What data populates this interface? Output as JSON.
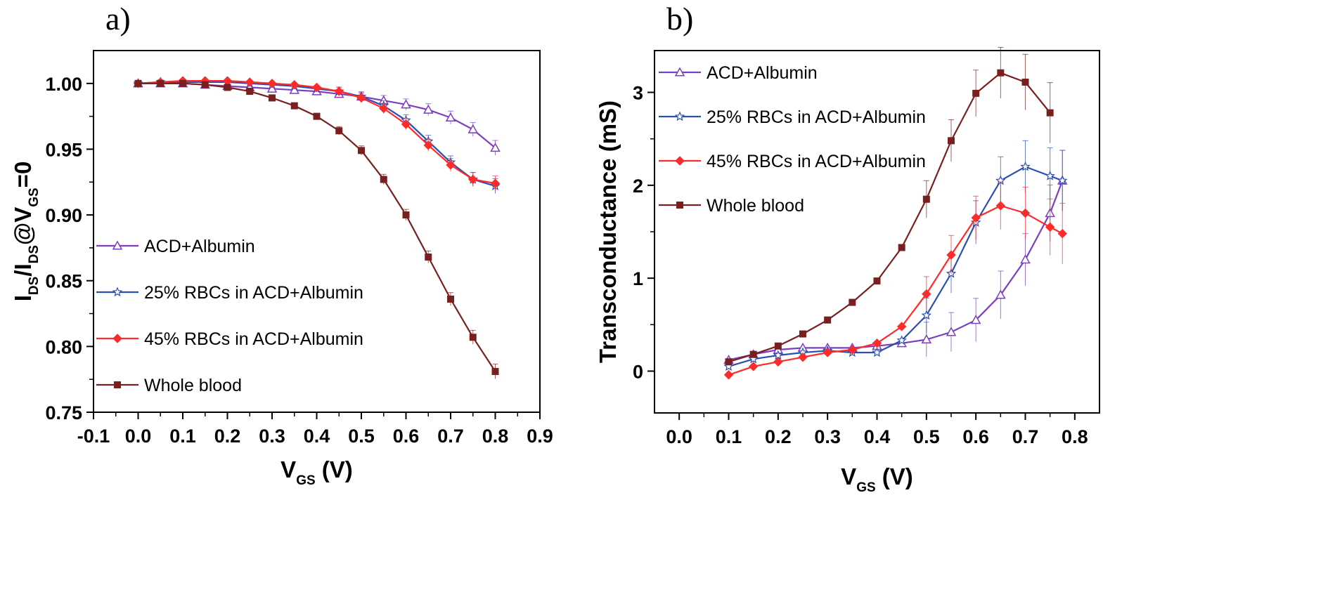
{
  "chart_data": [
    {
      "type": "line",
      "panel_label": "a)",
      "xlabel": {
        "main": "V",
        "sub": "GS",
        "rest": " (V)"
      },
      "ylabel": {
        "p1": "I",
        "s1": "DS",
        "p2": "/I",
        "s2": "DS",
        "p3": "@V",
        "s3": "GS",
        "p4": "=0"
      },
      "xlim": [
        -0.1,
        0.9
      ],
      "ylim": [
        0.75,
        1.025
      ],
      "xticks": [
        "-0.1",
        "0.0",
        "0.1",
        "0.2",
        "0.3",
        "0.4",
        "0.5",
        "0.6",
        "0.7",
        "0.8",
        "0.9"
      ],
      "yticks": [
        "0.75",
        "0.80",
        "0.85",
        "0.90",
        "0.95",
        "1.00"
      ],
      "legend_position": "bottom-left",
      "series": [
        {
          "name": "ACD+Albumin",
          "color": "#7b3fbf",
          "marker": "triangle",
          "x": [
            0.0,
            0.05,
            0.1,
            0.15,
            0.2,
            0.25,
            0.3,
            0.35,
            0.4,
            0.45,
            0.5,
            0.55,
            0.6,
            0.65,
            0.7,
            0.75,
            0.8
          ],
          "y": [
            1.0,
            1.0,
            1.0,
            0.999,
            0.998,
            0.997,
            0.996,
            0.995,
            0.994,
            0.992,
            0.99,
            0.987,
            0.984,
            0.98,
            0.974,
            0.965,
            0.951
          ]
        },
        {
          "name": "25% RBCs in ACD+Albumin",
          "color": "#2a4fb0",
          "marker": "star",
          "x": [
            0.0,
            0.05,
            0.1,
            0.15,
            0.2,
            0.25,
            0.3,
            0.35,
            0.4,
            0.45,
            0.5,
            0.55,
            0.6,
            0.65,
            0.7,
            0.75,
            0.8
          ],
          "y": [
            1.0,
            1.001,
            1.001,
            1.001,
            1.001,
            1.0,
            0.999,
            0.998,
            0.996,
            0.994,
            0.99,
            0.983,
            0.972,
            0.956,
            0.94,
            0.927,
            0.922
          ]
        },
        {
          "name": "45% RBCs in ACD+Albumin",
          "color": "#ff2a2a",
          "marker": "diamond",
          "x": [
            0.0,
            0.05,
            0.1,
            0.15,
            0.2,
            0.25,
            0.3,
            0.35,
            0.4,
            0.45,
            0.5,
            0.55,
            0.6,
            0.65,
            0.7,
            0.75,
            0.8
          ],
          "y": [
            1.0,
            1.001,
            1.002,
            1.002,
            1.002,
            1.001,
            1.0,
            0.999,
            0.997,
            0.994,
            0.989,
            0.981,
            0.969,
            0.953,
            0.938,
            0.927,
            0.924
          ]
        },
        {
          "name": "Whole blood",
          "color": "#7a1f1f",
          "marker": "square",
          "x": [
            0.0,
            0.05,
            0.1,
            0.15,
            0.2,
            0.25,
            0.3,
            0.35,
            0.4,
            0.45,
            0.5,
            0.55,
            0.6,
            0.65,
            0.7,
            0.75,
            0.8
          ],
          "y": [
            1.0,
            1.0,
            1.0,
            0.999,
            0.997,
            0.994,
            0.989,
            0.983,
            0.975,
            0.964,
            0.949,
            0.927,
            0.9,
            0.868,
            0.836,
            0.807,
            0.781
          ]
        }
      ]
    },
    {
      "type": "line",
      "panel_label": "b)",
      "xlabel": {
        "main": "V",
        "sub": "GS",
        "rest": " (V)"
      },
      "ylabel": "Transconductance (mS)",
      "xlim": [
        -0.05,
        0.85
      ],
      "ylim": [
        -0.45,
        3.45
      ],
      "xticks": [
        "0.0",
        "0.1",
        "0.2",
        "0.3",
        "0.4",
        "0.5",
        "0.6",
        "0.7",
        "0.8"
      ],
      "yticks": [
        "0",
        "1",
        "2",
        "3"
      ],
      "legend_position": "top-left",
      "series": [
        {
          "name": "ACD+Albumin",
          "color": "#7b3fbf",
          "marker": "triangle",
          "x": [
            0.1,
            0.15,
            0.2,
            0.25,
            0.3,
            0.35,
            0.4,
            0.45,
            0.5,
            0.55,
            0.6,
            0.65,
            0.7,
            0.75,
            0.775
          ],
          "y": [
            0.12,
            0.18,
            0.23,
            0.25,
            0.25,
            0.25,
            0.27,
            0.3,
            0.34,
            0.42,
            0.55,
            0.82,
            1.2,
            1.7,
            2.05
          ]
        },
        {
          "name": "25% RBCs in ACD+Albumin",
          "color": "#2a4fb0",
          "marker": "star",
          "x": [
            0.1,
            0.15,
            0.2,
            0.25,
            0.3,
            0.35,
            0.4,
            0.45,
            0.5,
            0.55,
            0.6,
            0.65,
            0.7,
            0.75,
            0.775
          ],
          "y": [
            0.05,
            0.13,
            0.17,
            0.2,
            0.22,
            0.2,
            0.2,
            0.33,
            0.6,
            1.05,
            1.6,
            2.05,
            2.2,
            2.1,
            2.05
          ]
        },
        {
          "name": "45% RBCs in ACD+Albumin",
          "color": "#ff2a2a",
          "marker": "diamond",
          "x": [
            0.1,
            0.15,
            0.2,
            0.25,
            0.3,
            0.35,
            0.4,
            0.45,
            0.5,
            0.55,
            0.6,
            0.65,
            0.7,
            0.75,
            0.775
          ],
          "y": [
            -0.04,
            0.05,
            0.1,
            0.15,
            0.2,
            0.23,
            0.3,
            0.48,
            0.83,
            1.25,
            1.65,
            1.78,
            1.7,
            1.55,
            1.48
          ]
        },
        {
          "name": "Whole blood",
          "color": "#7a1f1f",
          "marker": "square",
          "x": [
            0.1,
            0.15,
            0.2,
            0.25,
            0.3,
            0.35,
            0.4,
            0.45,
            0.5,
            0.55,
            0.6,
            0.65,
            0.7,
            0.75
          ],
          "y": [
            0.1,
            0.18,
            0.27,
            0.4,
            0.55,
            0.74,
            0.97,
            1.33,
            1.85,
            2.48,
            2.99,
            3.21,
            3.11,
            2.78
          ]
        }
      ]
    }
  ]
}
